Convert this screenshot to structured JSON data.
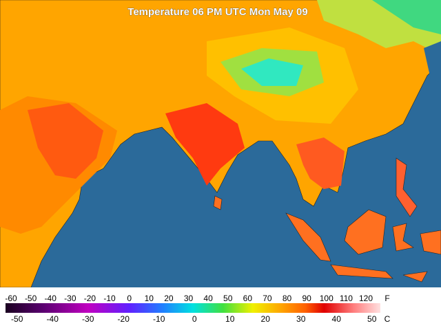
{
  "title": "Temperature 06 PM UTC Mon May 09",
  "legend": {
    "fahrenheit": {
      "unit": "F",
      "ticks": [
        -60,
        -50,
        -40,
        -30,
        -20,
        -10,
        0,
        10,
        20,
        30,
        40,
        50,
        60,
        70,
        80,
        90,
        100,
        110,
        120
      ]
    },
    "celsius": {
      "unit": "C",
      "ticks": [
        -50,
        -40,
        -30,
        -20,
        -10,
        0,
        10,
        20,
        30,
        40,
        50
      ]
    }
  }
}
